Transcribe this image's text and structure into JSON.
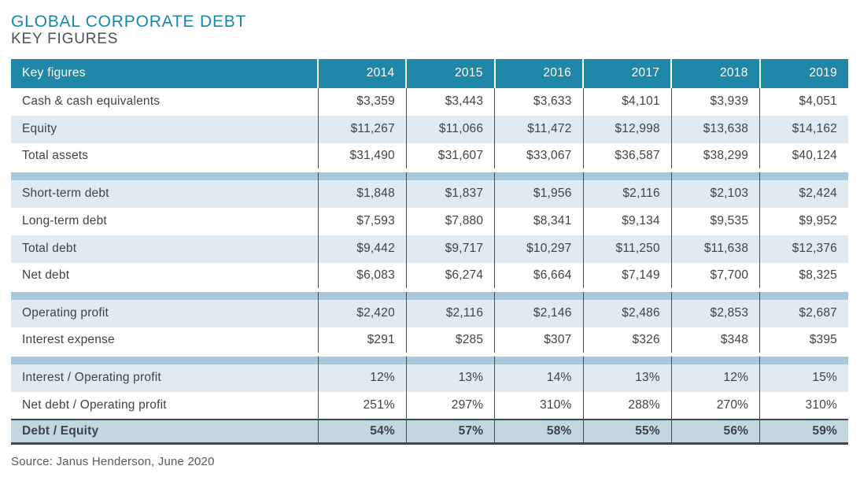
{
  "title": "GLOBAL CORPORATE DEBT",
  "subtitle": "KEY FIGURES",
  "source": "Source: Janus Henderson, June 2020",
  "colors": {
    "header_bg": "#1f87a8",
    "row_white_bg": "#ffffff",
    "row_alt_bg": "#dfeaf3",
    "separator_bg": "#a9c8dc",
    "highlight_row_bg": "#c3d7e3",
    "divider": "#454c52",
    "title_teal": "#1687a9",
    "subtitle_gray": "#4a5056",
    "body_text": "#3d4449"
  },
  "table": {
    "header": [
      "Key figures",
      "2014",
      "2015",
      "2016",
      "2017",
      "2018",
      "2019"
    ],
    "rows": [
      {
        "variant": "white",
        "label": "Cash & cash equivalents",
        "values": [
          "$3,359",
          "$3,443",
          "$3,633",
          "$4,101",
          "$3,939",
          "$4,051"
        ]
      },
      {
        "variant": "alt",
        "label": "Equity",
        "values": [
          "$11,267",
          "$11,066",
          "$11,472",
          "$12,998",
          "$13,638",
          "$14,162"
        ]
      },
      {
        "variant": "white",
        "label": "Total assets",
        "values": [
          "$31,490",
          "$31,607",
          "$33,067",
          "$36,587",
          "$38,299",
          "$40,124"
        ]
      },
      {
        "variant": "separator"
      },
      {
        "variant": "alt",
        "label": "Short-term debt",
        "values": [
          "$1,848",
          "$1,837",
          "$1,956",
          "$2,116",
          "$2,103",
          "$2,424"
        ]
      },
      {
        "variant": "white",
        "label": "Long-term debt",
        "values": [
          "$7,593",
          "$7,880",
          "$8,341",
          "$9,134",
          "$9,535",
          "$9,952"
        ]
      },
      {
        "variant": "alt",
        "label": "Total debt",
        "values": [
          "$9,442",
          "$9,717",
          "$10,297",
          "$11,250",
          "$11,638",
          "$12,376"
        ]
      },
      {
        "variant": "white",
        "label": "Net debt",
        "values": [
          "$6,083",
          "$6,274",
          "$6,664",
          "$7,149",
          "$7,700",
          "$8,325"
        ]
      },
      {
        "variant": "separator"
      },
      {
        "variant": "alt",
        "label": "Operating profit",
        "values": [
          "$2,420",
          "$2,116",
          "$2,146",
          "$2,486",
          "$2,853",
          "$2,687"
        ]
      },
      {
        "variant": "white",
        "label": "Interest expense",
        "values": [
          "$291",
          "$285",
          "$307",
          "$326",
          "$348",
          "$395"
        ]
      },
      {
        "variant": "separator"
      },
      {
        "variant": "alt",
        "label": "Interest / Operating profit",
        "values": [
          "12%",
          "13%",
          "14%",
          "13%",
          "12%",
          "15%"
        ]
      },
      {
        "variant": "white",
        "label": "Net debt / Operating profit",
        "values": [
          "251%",
          "297%",
          "310%",
          "288%",
          "270%",
          "310%"
        ]
      },
      {
        "variant": "highlight",
        "label": "Debt / Equity",
        "values": [
          "54%",
          "57%",
          "58%",
          "55%",
          "56%",
          "59%"
        ]
      }
    ]
  },
  "chart_data": {
    "type": "table",
    "title": "GLOBAL CORPORATE DEBT — KEY FIGURES",
    "columns": [
      "Key figures",
      "2014",
      "2015",
      "2016",
      "2017",
      "2018",
      "2019"
    ],
    "rows": [
      {
        "label": "Cash & cash equivalents",
        "values": [
          3359,
          3443,
          3633,
          4101,
          3939,
          4051
        ],
        "unit": "$"
      },
      {
        "label": "Equity",
        "values": [
          11267,
          11066,
          11472,
          12998,
          13638,
          14162
        ],
        "unit": "$"
      },
      {
        "label": "Total assets",
        "values": [
          31490,
          31607,
          33067,
          36587,
          38299,
          40124
        ],
        "unit": "$"
      },
      {
        "label": "Short-term debt",
        "values": [
          1848,
          1837,
          1956,
          2116,
          2103,
          2424
        ],
        "unit": "$"
      },
      {
        "label": "Long-term debt",
        "values": [
          7593,
          7880,
          8341,
          9134,
          9535,
          9952
        ],
        "unit": "$"
      },
      {
        "label": "Total debt",
        "values": [
          9442,
          9717,
          10297,
          11250,
          11638,
          12376
        ],
        "unit": "$"
      },
      {
        "label": "Net debt",
        "values": [
          6083,
          6274,
          6664,
          7149,
          7700,
          8325
        ],
        "unit": "$"
      },
      {
        "label": "Operating profit",
        "values": [
          2420,
          2116,
          2146,
          2486,
          2853,
          2687
        ],
        "unit": "$"
      },
      {
        "label": "Interest expense",
        "values": [
          291,
          285,
          307,
          326,
          348,
          395
        ],
        "unit": "$"
      },
      {
        "label": "Interest / Operating profit",
        "values": [
          12,
          13,
          14,
          13,
          12,
          15
        ],
        "unit": "%"
      },
      {
        "label": "Net debt / Operating profit",
        "values": [
          251,
          297,
          310,
          288,
          270,
          310
        ],
        "unit": "%"
      },
      {
        "label": "Debt / Equity",
        "values": [
          54,
          57,
          58,
          55,
          56,
          59
        ],
        "unit": "%"
      }
    ],
    "source": "Source: Janus Henderson, June 2020"
  }
}
